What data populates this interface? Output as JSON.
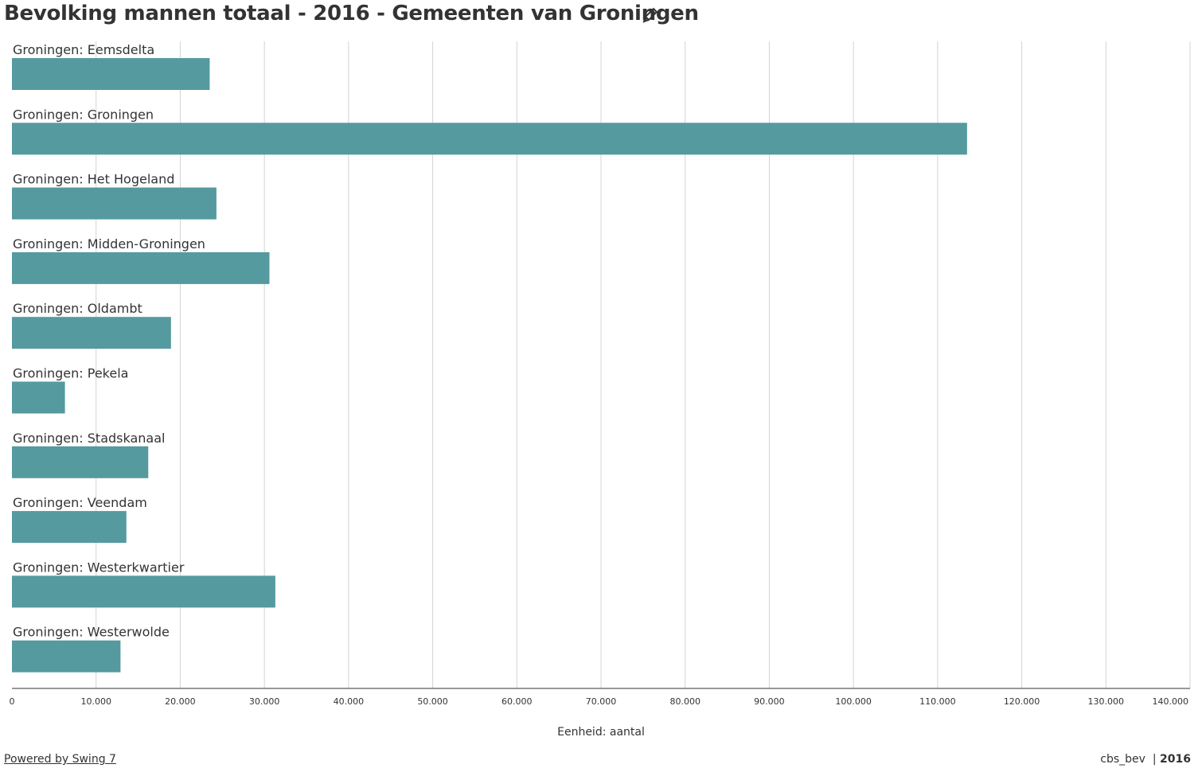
{
  "chart_data": {
    "type": "bar",
    "orientation": "horizontal",
    "title": "Bevolking mannen totaal - 2016 - Gemeenten van Groningen",
    "categories": [
      "Groningen: Eemsdelta",
      "Groningen: Groningen",
      "Groningen: Het Hogeland",
      "Groningen: Midden-Groningen",
      "Groningen: Oldambt",
      "Groningen: Pekela",
      "Groningen: Stadskanaal",
      "Groningen: Veendam",
      "Groningen: Westerkwartier",
      "Groningen: Westerwolde"
    ],
    "values": [
      23500,
      113500,
      24300,
      30600,
      18900,
      6300,
      16200,
      13600,
      31300,
      12900
    ],
    "color": "#559a9e",
    "xlim": [
      0,
      140000
    ],
    "xticks": [
      0,
      {
        "value": 10000,
        "label": "10.000"
      },
      {
        "value": 20000,
        "label": "20.000"
      },
      {
        "value": 30000,
        "label": "30.000"
      },
      {
        "value": 40000,
        "label": "40.000"
      },
      {
        "value": 50000,
        "label": "50.000"
      },
      {
        "value": 60000,
        "label": "60.000"
      },
      {
        "value": 70000,
        "label": "70.000"
      },
      {
        "value": 80000,
        "label": "80.000"
      },
      {
        "value": 90000,
        "label": "90.000"
      },
      {
        "value": 100000,
        "label": "100.000"
      },
      {
        "value": 110000,
        "label": "110.000"
      },
      {
        "value": 120000,
        "label": "120.000"
      },
      {
        "value": 130000,
        "label": "130.000"
      },
      {
        "value": 140000,
        "label": "140.000"
      }
    ],
    "x_label": "Eenheid: aantal",
    "grid": true
  },
  "footer": {
    "link": "Powered by Swing 7",
    "source": "cbs_bev",
    "separator": "|",
    "year": "2016"
  }
}
